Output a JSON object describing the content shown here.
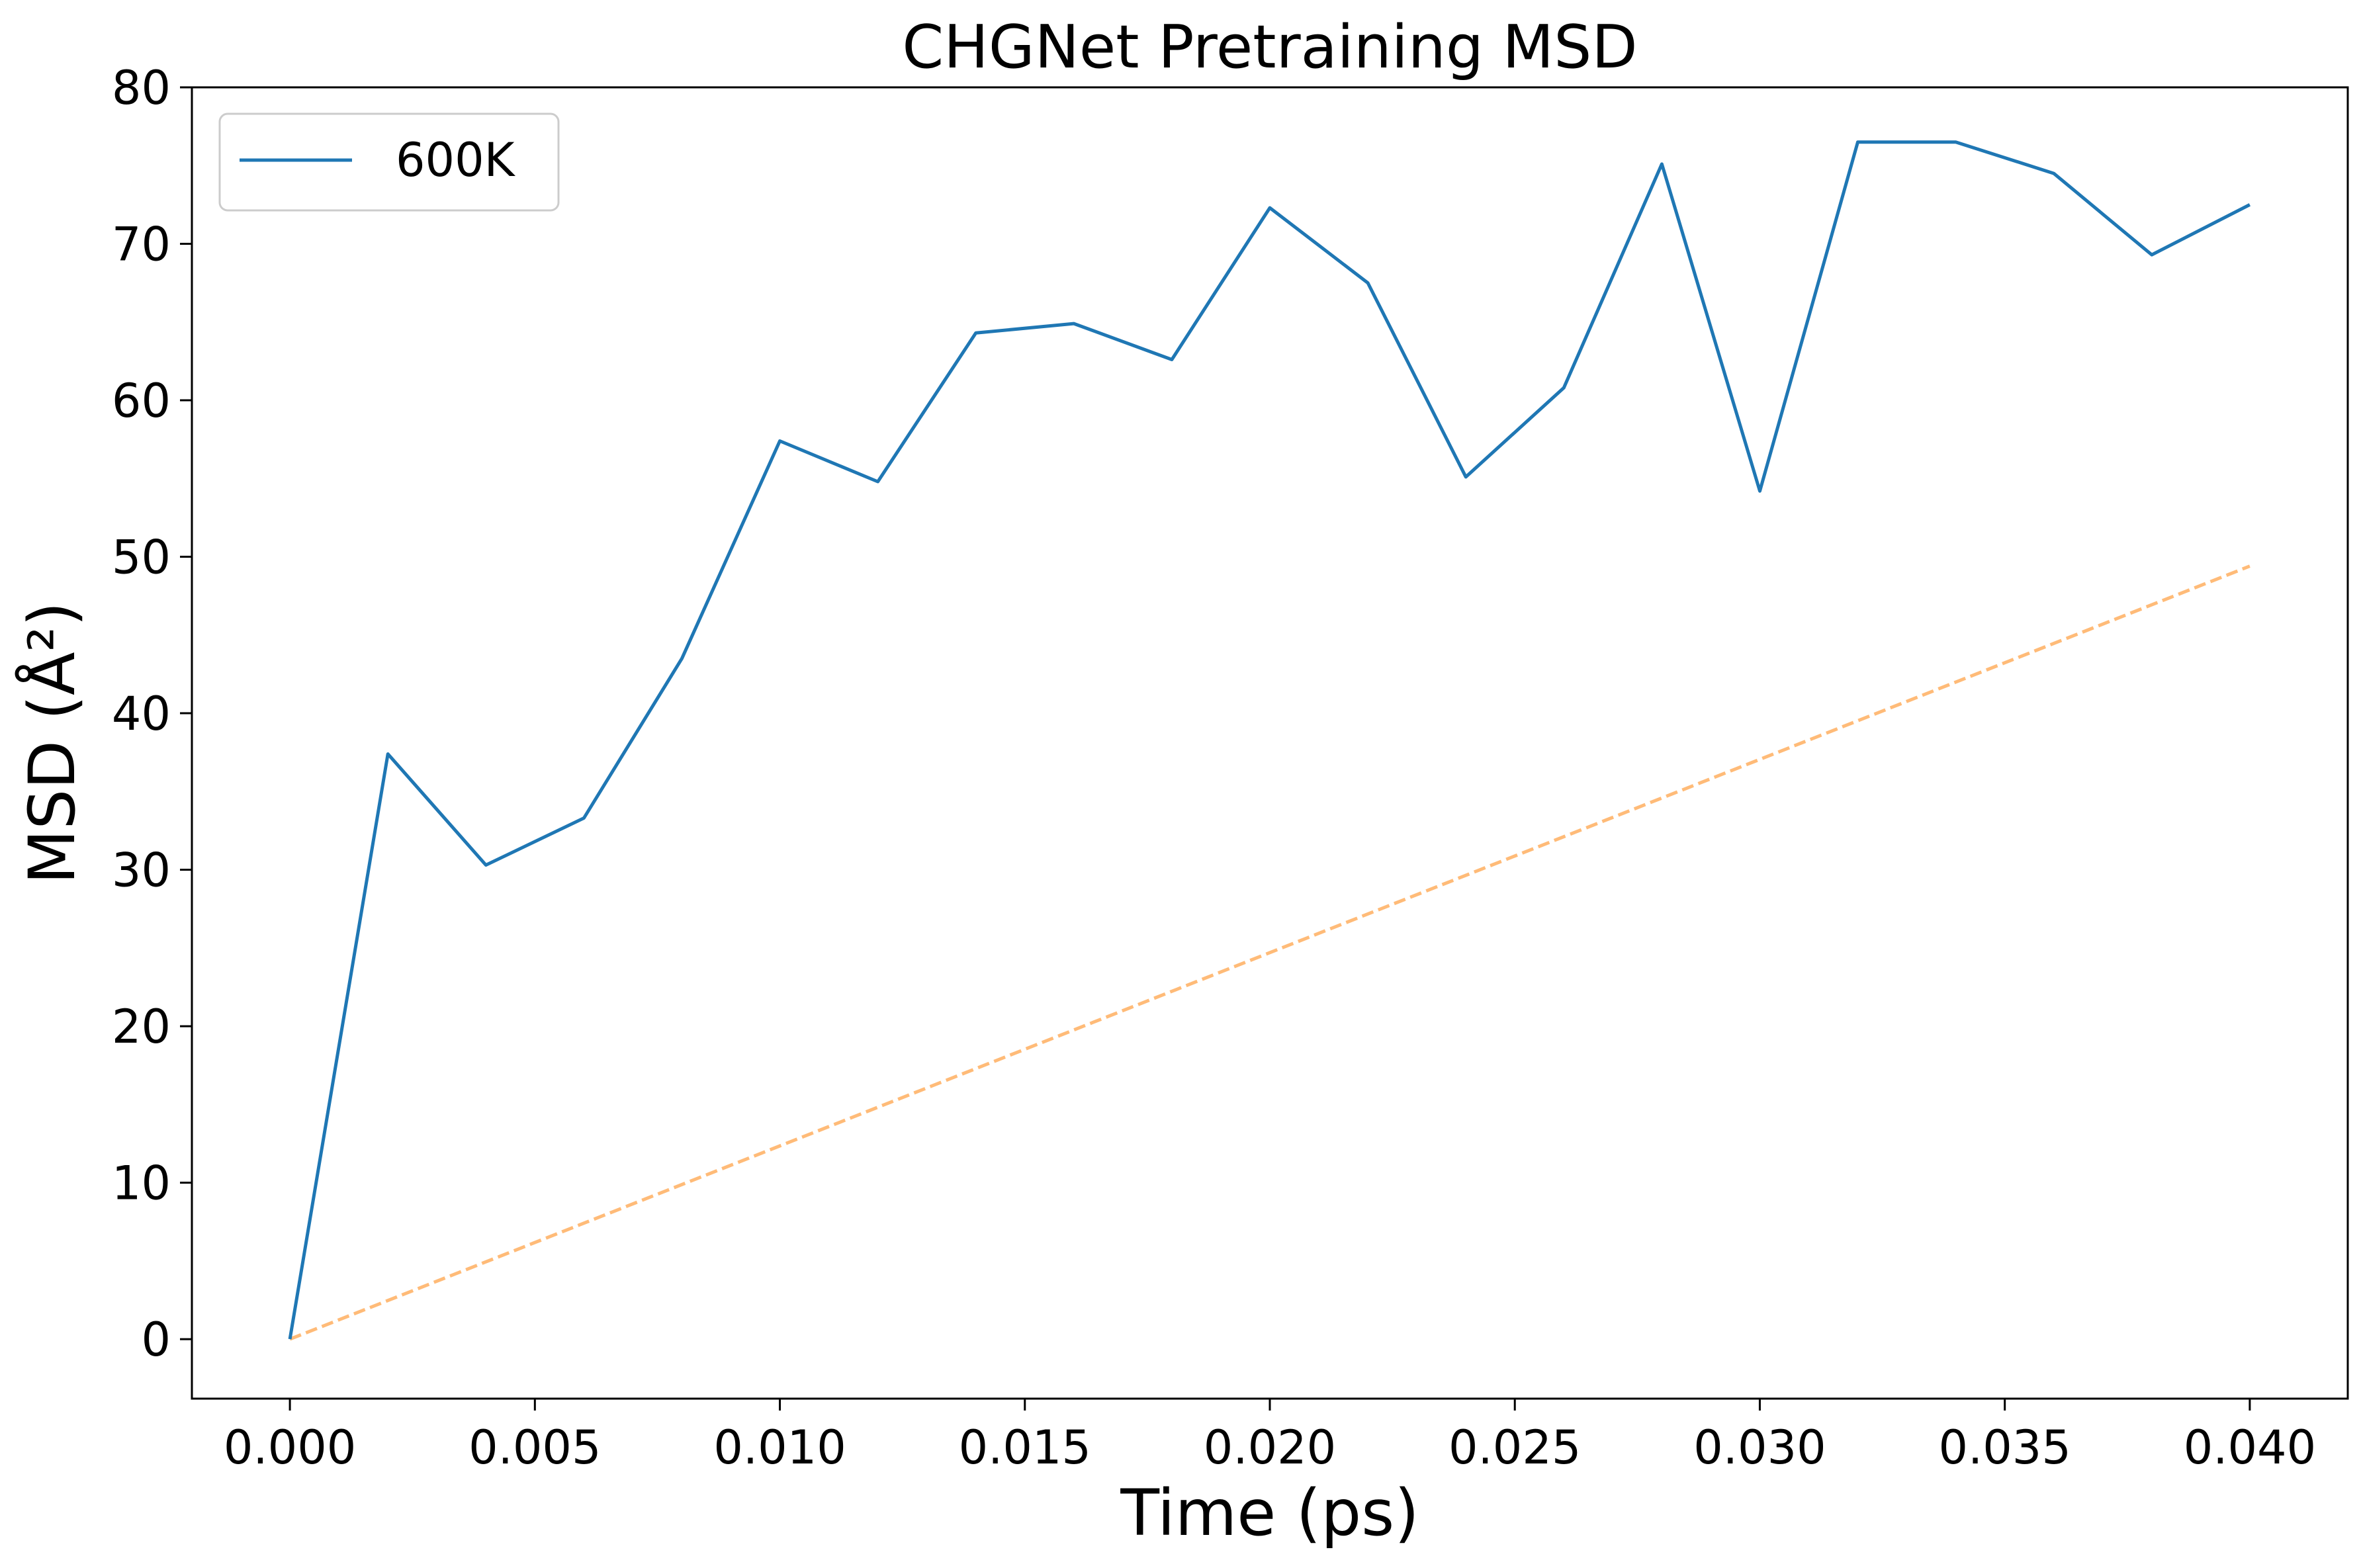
{
  "chart_data": {
    "type": "line",
    "title": "CHGNet Pretraining MSD",
    "xlabel": "Time (ps)",
    "ylabel": "MSD (Å²)",
    "xlim": [
      -0.002,
      0.042
    ],
    "ylim": [
      -3.8,
      80
    ],
    "grid": false,
    "legend_position": "top-left",
    "x_ticks": [
      0.0,
      0.005,
      0.01,
      0.015,
      0.02,
      0.025,
      0.03,
      0.035,
      0.04
    ],
    "x_tick_labels": [
      "0.000",
      "0.005",
      "0.010",
      "0.015",
      "0.020",
      "0.025",
      "0.030",
      "0.035",
      "0.040"
    ],
    "y_ticks": [
      0,
      10,
      20,
      30,
      40,
      50,
      60,
      70,
      80
    ],
    "y_tick_labels": [
      "0",
      "10",
      "20",
      "30",
      "40",
      "50",
      "60",
      "70",
      "80"
    ],
    "series": [
      {
        "name": "600K",
        "color": "#1f77b4",
        "style": "solid",
        "x": [
          0.0,
          0.002,
          0.004,
          0.006,
          0.008,
          0.01,
          0.012,
          0.014,
          0.016,
          0.018,
          0.02,
          0.022,
          0.024,
          0.026,
          0.028,
          0.03,
          0.032,
          0.034,
          0.036,
          0.038,
          0.04
        ],
        "y": [
          0.0,
          37.4,
          30.3,
          33.3,
          43.5,
          57.4,
          54.8,
          64.3,
          64.9,
          62.6,
          72.3,
          67.5,
          55.1,
          60.8,
          75.1,
          54.2,
          76.5,
          76.5,
          74.5,
          69.3,
          72.5
        ]
      },
      {
        "color": "#ffbb78",
        "style": "dashed",
        "x": [
          0.0,
          0.04
        ],
        "y": [
          0.0,
          49.4
        ]
      }
    ]
  }
}
